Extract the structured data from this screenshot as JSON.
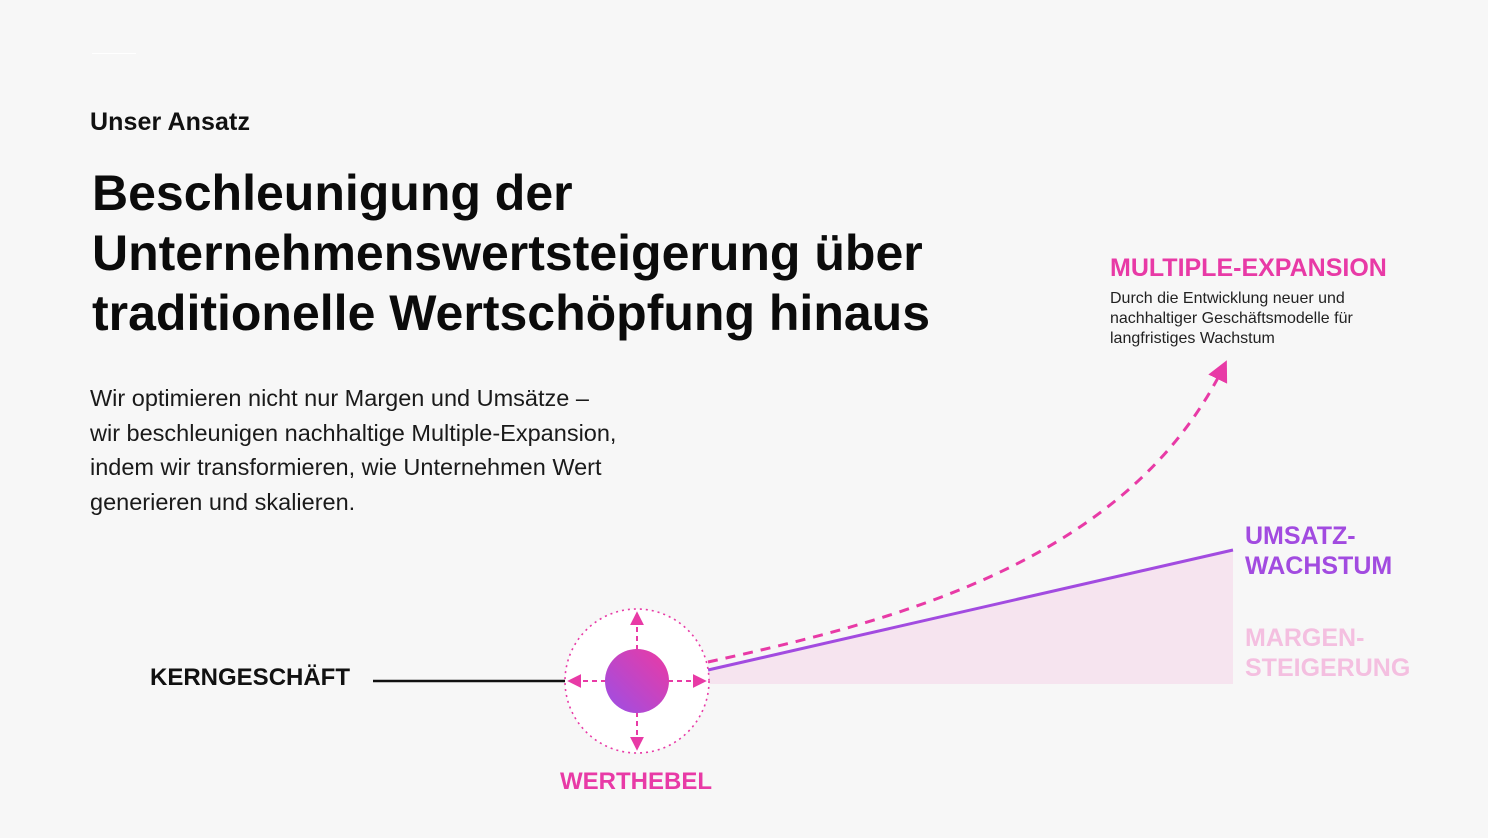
{
  "header": {
    "eyebrow": "Unser Ansatz",
    "headline_lines": [
      "Beschleunigung der",
      "Unternehmenswertsteigerung über",
      "traditionelle Wertschöpfung hinaus"
    ]
  },
  "intro_lines": [
    "Wir optimieren nicht nur Margen und Umsätze –",
    "wir beschleunigen nachhaltige Multiple-Expansion,",
    "indem wir transformieren, wie Unternehmen Wert",
    "generieren und skalieren."
  ],
  "diagram": {
    "core_label": "KERNGESCHÄFT",
    "lever_label": "WERTHEBEL",
    "multiple": {
      "label": "MULTIPLE-EXPANSION",
      "description_lines": [
        "Durch die Entwicklung neuer und",
        "nachhaltiger Geschäftsmodelle für",
        "langfristiges Wachstum"
      ]
    },
    "revenue_lines": [
      "UMSATZ-",
      "WACHSTUM"
    ],
    "margin_lines": [
      "MARGEN-",
      "STEIGERUNG"
    ],
    "colors": {
      "pink": "#e83aa6",
      "purple": "#a24be0",
      "light_pink": "#f4bfe0",
      "margin_fill": "#f6e4ef",
      "core_line": "#111111"
    }
  }
}
